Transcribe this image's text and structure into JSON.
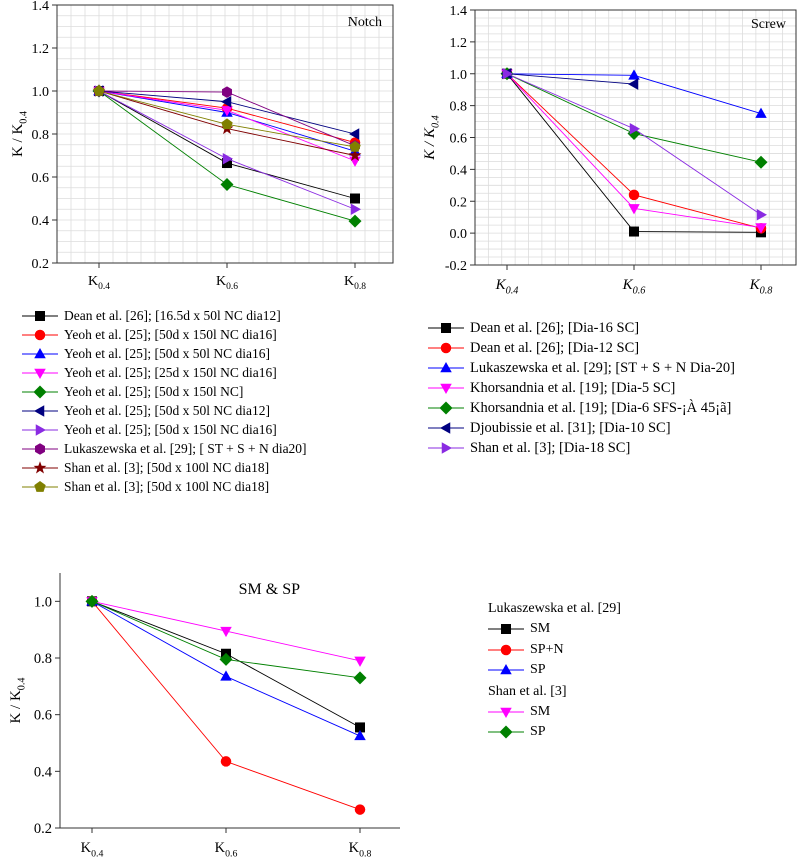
{
  "chart_data": [
    {
      "type": "line",
      "id": "notch",
      "title": "Notch",
      "xlabel": "",
      "ylabel": "K / K0.4",
      "categories": [
        "K0.4",
        "K0.6",
        "K0.8"
      ],
      "ylim": [
        0.2,
        1.4
      ],
      "yticks": [
        0.2,
        0.4,
        0.6,
        0.8,
        1.0,
        1.2,
        1.4
      ],
      "grid": true,
      "legend_position": "below",
      "series": [
        {
          "name": "Dean et al. [26]; [16.5d x 50l NC dia12]",
          "values": [
            1.0,
            0.665,
            0.5
          ],
          "color": "#000000",
          "marker": "square"
        },
        {
          "name": "Yeoh  et al. [25]; [50d x 150l NC dia16]",
          "values": [
            1.0,
            0.92,
            0.76
          ],
          "color": "#ff0000",
          "marker": "circle"
        },
        {
          "name": "Yeoh  et al. [25]; [50d x 50l NC dia16]",
          "values": [
            1.0,
            0.9,
            0.72
          ],
          "color": "#0000ff",
          "marker": "triangle-up"
        },
        {
          "name": "Yeoh  et al. [25]; [25d x 150l NC dia16]",
          "values": [
            1.0,
            0.91,
            0.675
          ],
          "color": "#ff00ff",
          "marker": "triangle-down"
        },
        {
          "name": "Yeoh  et al. [25]; [50d x 150l NC]",
          "values": [
            1.0,
            0.565,
            0.395
          ],
          "color": "#008000",
          "marker": "diamond"
        },
        {
          "name": "Yeoh  et al. [25]; [50d x 50l NC dia12]",
          "values": [
            1.0,
            0.95,
            0.8
          ],
          "color": "#000080",
          "marker": "triangle-left"
        },
        {
          "name": "Yeoh  et al. [25]; [50d x 150l NC dia16]",
          "values": [
            1.0,
            0.685,
            0.45
          ],
          "color": "#8a2be2",
          "marker": "triangle-right"
        },
        {
          "name": "Lukaszewska et al. [29]; [ ST + S + N dia20]",
          "values": [
            1.0,
            0.995,
            0.745
          ],
          "color": "#800080",
          "marker": "hexagon"
        },
        {
          "name": "Shan et al. [3]; [50d x 100l NC dia18]",
          "values": [
            1.0,
            0.825,
            0.7
          ],
          "color": "#800000",
          "marker": "star"
        },
        {
          "name": "Shan et al. [3]; [50d x 100l NC dia18]",
          "values": [
            1.0,
            0.845,
            0.74
          ],
          "color": "#808000",
          "marker": "pentagon"
        }
      ]
    },
    {
      "type": "line",
      "id": "screw",
      "title": "Screw",
      "xlabel": "",
      "ylabel": "K / K0.4",
      "categories": [
        "K0.4",
        "K0.6",
        "K0.8"
      ],
      "ylim": [
        -0.2,
        1.4
      ],
      "yticks": [
        -0.2,
        0.0,
        0.2,
        0.4,
        0.6,
        0.8,
        1.0,
        1.2,
        1.4
      ],
      "grid": true,
      "legend_position": "below",
      "series": [
        {
          "name": "Dean et al. [26]; [Dia-16 SC]",
          "values": [
            1.0,
            0.01,
            0.005
          ],
          "color": "#000000",
          "marker": "square"
        },
        {
          "name": "Dean et al. [26]; [Dia-12 SC]",
          "values": [
            1.0,
            0.24,
            0.03
          ],
          "color": "#ff0000",
          "marker": "circle"
        },
        {
          "name": "Lukaszewska et al. [29]; [ST + S + N Dia-20]",
          "values": [
            1.0,
            0.99,
            0.75
          ],
          "color": "#0000ff",
          "marker": "triangle-up"
        },
        {
          "name": "Khorsandnia et al. [19]; [Dia-5 SC]",
          "values": [
            1.0,
            0.155,
            0.035
          ],
          "color": "#ff00ff",
          "marker": "triangle-down"
        },
        {
          "name": "Khorsandnia et al. [19]; [Dia-6 SFS-¡À 45¡ã]",
          "values": [
            1.0,
            0.625,
            0.445
          ],
          "color": "#008000",
          "marker": "diamond"
        },
        {
          "name": "Djoubissie et al. [31]; [Dia-10 SC]",
          "values": [
            1.0,
            0.935,
            null
          ],
          "color": "#000080",
          "marker": "triangle-left"
        },
        {
          "name": "Shan et al. [3]; [Dia-18 SC]",
          "values": [
            1.0,
            0.655,
            0.115
          ],
          "color": "#8a2be2",
          "marker": "triangle-right"
        }
      ]
    },
    {
      "type": "line",
      "id": "smsp",
      "title": "SM & SP",
      "xlabel": "",
      "ylabel": "K / K0.4",
      "categories": [
        "K0.4",
        "K0.6",
        "K0.8"
      ],
      "ylim": [
        0.2,
        1.1
      ],
      "yticks": [
        0.2,
        0.4,
        0.6,
        0.8,
        1.0
      ],
      "grid": false,
      "legend_position": "right",
      "series": [
        {
          "name": "SM",
          "group": "Lukaszewska et al. [29]",
          "values": [
            1.0,
            0.815,
            0.555
          ],
          "color": "#000000",
          "marker": "square"
        },
        {
          "name": "SP+N",
          "group": "Lukaszewska et al. [29]",
          "values": [
            1.0,
            0.435,
            0.265
          ],
          "color": "#ff0000",
          "marker": "circle"
        },
        {
          "name": "SP",
          "group": "Lukaszewska et al. [29]",
          "values": [
            1.0,
            0.735,
            0.525
          ],
          "color": "#0000ff",
          "marker": "triangle-up"
        },
        {
          "name": "SM",
          "group": "Shan et al. [3]",
          "values": [
            1.0,
            0.895,
            0.79
          ],
          "color": "#ff00ff",
          "marker": "triangle-down"
        },
        {
          "name": "SP",
          "group": "Shan et al. [3]",
          "values": [
            1.0,
            0.795,
            0.73
          ],
          "color": "#008000",
          "marker": "diamond"
        }
      ],
      "legend_groups": [
        "Lukaszewska et al. [29]",
        "Shan et al. [3]"
      ]
    }
  ]
}
